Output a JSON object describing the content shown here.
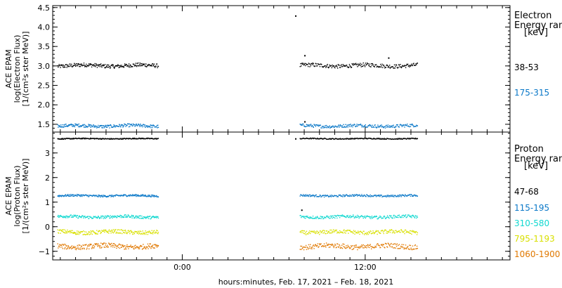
{
  "chart_data": [
    {
      "type": "scatter",
      "panel": "electron",
      "ylabel_lines": [
        "ACE EPAM",
        "log(Electron Flux)",
        "[1/(cm²s ster MeV)]"
      ],
      "ylim": [
        1.3,
        4.55
      ],
      "yticks": [
        1.5,
        2.0,
        2.5,
        3.0,
        3.5,
        4.0,
        4.5
      ],
      "ytick_labels": [
        "1.5",
        "2.0",
        "2.5",
        "3.0",
        "3.5",
        "4.0",
        "4.5"
      ],
      "legend_title": [
        "Electron",
        "Energy ran",
        "[keV]"
      ],
      "series": [
        {
          "name": "38-53",
          "color": "#000000",
          "level": 3.02,
          "amp": 0.05
        },
        {
          "name": "175-315",
          "color": "#0a78c8",
          "level": 1.47,
          "amp": 0.04
        }
      ],
      "outliers": [
        {
          "x_hours": 7.4,
          "y": 4.3
        },
        {
          "x_hours": 8.0,
          "y": 3.28
        },
        {
          "x_hours": 13.5,
          "y": 3.22
        },
        {
          "x_hours": 8.0,
          "y": 1.58
        }
      ]
    },
    {
      "type": "scatter",
      "panel": "proton",
      "ylabel_lines": [
        "ACE EPAM",
        "log(Proton Flux)",
        "[1/(cm²s ster MeV)]"
      ],
      "ylim": [
        -1.35,
        3.85
      ],
      "yticks": [
        -1,
        0,
        1,
        2,
        3
      ],
      "ytick_labels": [
        "−1",
        "0",
        "1",
        "2",
        "3"
      ],
      "legend_title": [
        "Proton",
        "Energy ran",
        "[keV]"
      ],
      "series": [
        {
          "name": "47-68",
          "color": "#000000",
          "level": 3.6,
          "amp": 0.02
        },
        {
          "name": "115-195",
          "color": "#0a78c8",
          "level": 1.28,
          "amp": 0.04
        },
        {
          "name": "310-580",
          "color": "#10d8d0",
          "level": 0.42,
          "amp": 0.06
        },
        {
          "name": "795-1193",
          "color": "#d8e000",
          "level": -0.2,
          "amp": 0.08
        },
        {
          "name": "1060-1900",
          "color": "#e07800",
          "level": -0.78,
          "amp": 0.1
        }
      ],
      "outliers": [
        {
          "x_hours": 7.4,
          "y": 3.6
        },
        {
          "x_hours": 7.8,
          "y": 0.7
        }
      ]
    }
  ],
  "x_axis": {
    "tick_labels": [
      {
        "hours": 0,
        "label": "0:00"
      },
      {
        "hours": 12,
        "label": "12:00"
      }
    ],
    "xlim_hours": [
      -8.5,
      21.5
    ],
    "data_segments_hours": [
      [
        -8.2,
        -1.6
      ],
      [
        7.7,
        15.4
      ]
    ],
    "label": "hours:minutes, Feb. 17, 2021 – Feb. 18, 2021"
  }
}
